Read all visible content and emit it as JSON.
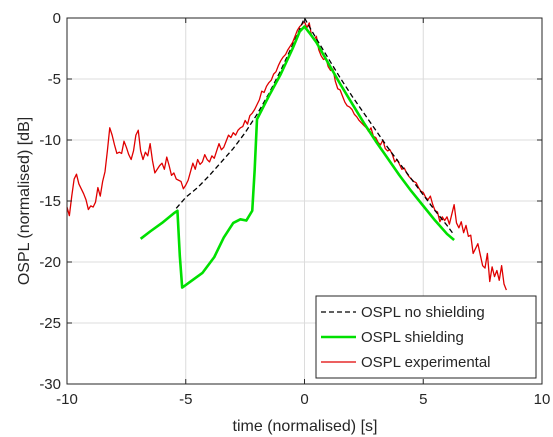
{
  "chart_data": {
    "type": "line",
    "title": "",
    "xlabel": "time (normalised) [s]",
    "ylabel": "OSPL (normalised) [dB]",
    "xlim": [
      -10,
      10
    ],
    "ylim": [
      -30,
      0
    ],
    "xticks": [
      -10,
      -5,
      0,
      5,
      10
    ],
    "yticks": [
      0,
      -5,
      -10,
      -15,
      -20,
      -25,
      -30
    ],
    "grid": true,
    "legend_position": "bottom-right",
    "series": [
      {
        "name": "OSPL no shielding",
        "color": "#000000",
        "style": "dashed",
        "points": [
          [
            -5.4,
            -15.6
          ],
          [
            -5.0,
            -14.7
          ],
          [
            -4.5,
            -13.9
          ],
          [
            -4.0,
            -12.9
          ],
          [
            -3.5,
            -11.8
          ],
          [
            -3.0,
            -10.7
          ],
          [
            -2.5,
            -9.4
          ],
          [
            -2.0,
            -7.9
          ],
          [
            -1.5,
            -6.2
          ],
          [
            -1.0,
            -4.3
          ],
          [
            -0.5,
            -2.2
          ],
          [
            -0.2,
            -0.9
          ],
          [
            0.0,
            0.0
          ],
          [
            0.2,
            -0.7
          ],
          [
            0.5,
            -1.7
          ],
          [
            1.0,
            -3.3
          ],
          [
            1.5,
            -4.9
          ],
          [
            2.0,
            -6.4
          ],
          [
            2.5,
            -7.8
          ],
          [
            3.0,
            -9.2
          ],
          [
            3.5,
            -10.6
          ],
          [
            4.0,
            -11.9
          ],
          [
            4.5,
            -13.2
          ],
          [
            5.0,
            -14.5
          ],
          [
            5.5,
            -15.8
          ],
          [
            6.0,
            -17.0
          ],
          [
            6.3,
            -17.8
          ]
        ]
      },
      {
        "name": "OSPL shielding",
        "color": "#00e000",
        "style": "solid",
        "points": [
          [
            -6.9,
            -18.1
          ],
          [
            -6.5,
            -17.5
          ],
          [
            -6.0,
            -16.8
          ],
          [
            -5.5,
            -16.0
          ],
          [
            -5.35,
            -15.8
          ],
          [
            -5.25,
            -19.5
          ],
          [
            -5.15,
            -22.1
          ],
          [
            -4.8,
            -21.6
          ],
          [
            -4.3,
            -20.9
          ],
          [
            -3.8,
            -19.6
          ],
          [
            -3.4,
            -18.0
          ],
          [
            -3.0,
            -16.8
          ],
          [
            -2.7,
            -16.5
          ],
          [
            -2.45,
            -16.6
          ],
          [
            -2.2,
            -15.8
          ],
          [
            -2.1,
            -12.5
          ],
          [
            -2.0,
            -8.3
          ],
          [
            -1.5,
            -6.4
          ],
          [
            -1.0,
            -4.6
          ],
          [
            -0.5,
            -2.5
          ],
          [
            -0.2,
            -1.1
          ],
          [
            0.0,
            -0.7
          ],
          [
            0.2,
            -1.2
          ],
          [
            0.5,
            -2.0
          ],
          [
            1.0,
            -3.7
          ],
          [
            1.5,
            -5.4
          ],
          [
            2.0,
            -7.0
          ],
          [
            2.5,
            -8.6
          ],
          [
            3.0,
            -10.1
          ],
          [
            3.5,
            -11.5
          ],
          [
            4.0,
            -12.9
          ],
          [
            4.5,
            -14.2
          ],
          [
            5.0,
            -15.4
          ],
          [
            5.5,
            -16.6
          ],
          [
            6.0,
            -17.7
          ],
          [
            6.3,
            -18.2
          ]
        ]
      },
      {
        "name": "OSPL experimental",
        "color": "#e00000",
        "style": "solid",
        "points": [
          [
            -10.0,
            -15.5
          ],
          [
            -9.9,
            -16.2
          ],
          [
            -9.8,
            -14.6
          ],
          [
            -9.7,
            -13.2
          ],
          [
            -9.6,
            -12.8
          ],
          [
            -9.5,
            -13.6
          ],
          [
            -9.4,
            -14.0
          ],
          [
            -9.3,
            -14.4
          ],
          [
            -9.2,
            -14.9
          ],
          [
            -9.1,
            -15.7
          ],
          [
            -9.0,
            -15.4
          ],
          [
            -8.9,
            -15.5
          ],
          [
            -8.8,
            -15.1
          ],
          [
            -8.7,
            -13.9
          ],
          [
            -8.6,
            -14.6
          ],
          [
            -8.5,
            -13.4
          ],
          [
            -8.4,
            -12.6
          ],
          [
            -8.3,
            -10.9
          ],
          [
            -8.2,
            -9.0
          ],
          [
            -8.1,
            -9.6
          ],
          [
            -8.0,
            -10.4
          ],
          [
            -7.9,
            -11.1
          ],
          [
            -7.8,
            -11.0
          ],
          [
            -7.7,
            -11.1
          ],
          [
            -7.6,
            -10.1
          ],
          [
            -7.5,
            -10.6
          ],
          [
            -7.4,
            -11.2
          ],
          [
            -7.3,
            -11.6
          ],
          [
            -7.2,
            -10.9
          ],
          [
            -7.1,
            -9.6
          ],
          [
            -7.0,
            -9.2
          ],
          [
            -6.9,
            -10.9
          ],
          [
            -6.8,
            -11.6
          ],
          [
            -6.7,
            -11.0
          ],
          [
            -6.6,
            -11.3
          ],
          [
            -6.5,
            -10.3
          ],
          [
            -6.4,
            -11.7
          ],
          [
            -6.3,
            -12.7
          ],
          [
            -6.2,
            -12.4
          ],
          [
            -6.1,
            -12.1
          ],
          [
            -6.0,
            -11.9
          ],
          [
            -5.9,
            -12.4
          ],
          [
            -5.8,
            -11.4
          ],
          [
            -5.7,
            -12.1
          ],
          [
            -5.6,
            -12.9
          ],
          [
            -5.5,
            -12.7
          ],
          [
            -5.4,
            -13.2
          ],
          [
            -5.3,
            -13.3
          ],
          [
            -5.2,
            -13.4
          ],
          [
            -5.1,
            -14.0
          ],
          [
            -5.0,
            -13.7
          ],
          [
            -4.9,
            -13.3
          ],
          [
            -4.8,
            -12.6
          ],
          [
            -4.7,
            -11.9
          ],
          [
            -4.6,
            -12.4
          ],
          [
            -4.5,
            -11.6
          ],
          [
            -4.4,
            -12.0
          ],
          [
            -4.3,
            -11.8
          ],
          [
            -4.2,
            -11.2
          ],
          [
            -4.1,
            -11.6
          ],
          [
            -4.0,
            -11.8
          ],
          [
            -3.9,
            -11.3
          ],
          [
            -3.8,
            -11.5
          ],
          [
            -3.7,
            -10.9
          ],
          [
            -3.6,
            -10.3
          ],
          [
            -3.5,
            -10.8
          ],
          [
            -3.4,
            -10.6
          ],
          [
            -3.3,
            -10.1
          ],
          [
            -3.2,
            -9.6
          ],
          [
            -3.1,
            -9.8
          ],
          [
            -3.0,
            -9.4
          ],
          [
            -2.9,
            -9.6
          ],
          [
            -2.8,
            -9.2
          ],
          [
            -2.7,
            -9.0
          ],
          [
            -2.6,
            -8.9
          ],
          [
            -2.5,
            -8.4
          ],
          [
            -2.4,
            -8.7
          ],
          [
            -2.3,
            -8.0
          ],
          [
            -2.2,
            -7.8
          ],
          [
            -2.1,
            -7.5
          ],
          [
            -2.0,
            -7.1
          ],
          [
            -1.9,
            -6.7
          ],
          [
            -1.8,
            -6.0
          ],
          [
            -1.7,
            -6.1
          ],
          [
            -1.6,
            -5.6
          ],
          [
            -1.5,
            -5.3
          ],
          [
            -1.4,
            -5.1
          ],
          [
            -1.3,
            -4.6
          ],
          [
            -1.2,
            -4.4
          ],
          [
            -1.1,
            -3.9
          ],
          [
            -1.0,
            -3.5
          ],
          [
            -0.9,
            -3.2
          ],
          [
            -0.8,
            -3.0
          ],
          [
            -0.7,
            -2.6
          ],
          [
            -0.6,
            -2.3
          ],
          [
            -0.5,
            -2.0
          ],
          [
            -0.4,
            -1.5
          ],
          [
            -0.3,
            -1.0
          ],
          [
            -0.2,
            -0.7
          ],
          [
            -0.1,
            -0.5
          ],
          [
            0.0,
            -0.3
          ],
          [
            0.1,
            -0.8
          ],
          [
            0.2,
            -0.4
          ],
          [
            0.3,
            -1.5
          ],
          [
            0.4,
            -1.8
          ],
          [
            0.5,
            -1.5
          ],
          [
            0.6,
            -2.6
          ],
          [
            0.7,
            -3.1
          ],
          [
            0.8,
            -3.4
          ],
          [
            0.9,
            -3.3
          ],
          [
            1.0,
            -4.0
          ],
          [
            1.1,
            -4.3
          ],
          [
            1.2,
            -4.2
          ],
          [
            1.3,
            -5.2
          ],
          [
            1.4,
            -5.8
          ],
          [
            1.5,
            -5.9
          ],
          [
            1.6,
            -6.4
          ],
          [
            1.7,
            -6.9
          ],
          [
            1.8,
            -7.2
          ],
          [
            1.9,
            -7.3
          ],
          [
            2.0,
            -7.5
          ],
          [
            2.1,
            -7.9
          ],
          [
            2.2,
            -8.1
          ],
          [
            2.3,
            -8.4
          ],
          [
            2.4,
            -8.6
          ],
          [
            2.5,
            -8.8
          ],
          [
            2.6,
            -9.0
          ],
          [
            2.7,
            -9.3
          ],
          [
            2.8,
            -9.0
          ],
          [
            2.9,
            -9.7
          ],
          [
            3.0,
            -9.8
          ],
          [
            3.1,
            -10.2
          ],
          [
            3.2,
            -10.4
          ],
          [
            3.3,
            -10.0
          ],
          [
            3.4,
            -10.7
          ],
          [
            3.5,
            -10.9
          ],
          [
            3.6,
            -10.8
          ],
          [
            3.7,
            -11.2
          ],
          [
            3.8,
            -11.8
          ],
          [
            3.9,
            -11.6
          ],
          [
            4.0,
            -12.0
          ],
          [
            4.1,
            -12.4
          ],
          [
            4.2,
            -12.3
          ],
          [
            4.3,
            -12.7
          ],
          [
            4.4,
            -13.0
          ],
          [
            4.5,
            -13.2
          ],
          [
            4.6,
            -13.4
          ],
          [
            4.7,
            -13.5
          ],
          [
            4.8,
            -13.9
          ],
          [
            4.9,
            -14.2
          ],
          [
            5.0,
            -14.3
          ],
          [
            5.1,
            -14.7
          ],
          [
            5.2,
            -14.9
          ],
          [
            5.3,
            -14.6
          ],
          [
            5.4,
            -15.3
          ],
          [
            5.5,
            -15.8
          ],
          [
            5.6,
            -15.9
          ],
          [
            5.7,
            -16.7
          ],
          [
            5.8,
            -16.3
          ],
          [
            5.9,
            -16.6
          ],
          [
            6.0,
            -16.3
          ],
          [
            6.1,
            -16.9
          ],
          [
            6.2,
            -16.1
          ],
          [
            6.3,
            -15.3
          ],
          [
            6.4,
            -16.8
          ],
          [
            6.5,
            -17.2
          ],
          [
            6.6,
            -16.7
          ],
          [
            6.7,
            -17.6
          ],
          [
            6.8,
            -17.0
          ],
          [
            6.9,
            -17.9
          ],
          [
            7.0,
            -17.8
          ],
          [
            7.1,
            -19.3
          ],
          [
            7.2,
            -18.9
          ],
          [
            7.3,
            -18.5
          ],
          [
            7.4,
            -19.4
          ],
          [
            7.5,
            -20.3
          ],
          [
            7.6,
            -20.5
          ],
          [
            7.7,
            -19.3
          ],
          [
            7.8,
            -21.6
          ],
          [
            7.9,
            -20.4
          ],
          [
            8.0,
            -21.2
          ],
          [
            8.1,
            -20.7
          ],
          [
            8.2,
            -21.5
          ],
          [
            8.3,
            -20.3
          ],
          [
            8.4,
            -21.8
          ],
          [
            8.5,
            -22.3
          ]
        ]
      }
    ]
  }
}
